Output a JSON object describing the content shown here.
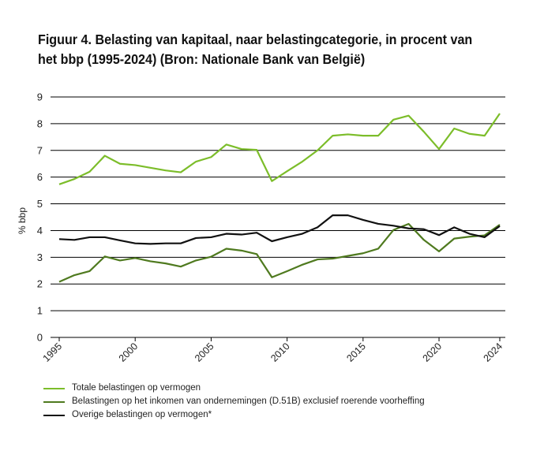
{
  "chart_data": {
    "type": "line",
    "title": "Figuur 4. Belasting van kapitaal, naar belastingcategorie, in procent van het bbp (1995-2024) (Bron: Nationale Bank van België)",
    "xlabel": "",
    "ylabel": "% bbp",
    "ylim": [
      0,
      9
    ],
    "yticks": [
      "0",
      "1",
      "2",
      "3",
      "4",
      "5",
      "6",
      "7",
      "8",
      "9"
    ],
    "xtick_labels": [
      "1995",
      "2000",
      "2005",
      "2010",
      "2015",
      "2020",
      "2024"
    ],
    "xticks": [
      1995,
      2000,
      2005,
      2010,
      2015,
      2020,
      2024
    ],
    "xlim": [
      1995,
      2024
    ],
    "grid": true,
    "legend_position": "bottom",
    "x": [
      1995,
      1996,
      1997,
      1998,
      1999,
      2000,
      2001,
      2002,
      2003,
      2004,
      2005,
      2006,
      2007,
      2008,
      2009,
      2010,
      2011,
      2012,
      2013,
      2014,
      2015,
      2016,
      2017,
      2018,
      2019,
      2020,
      2021,
      2022,
      2023,
      2024
    ],
    "series": [
      {
        "name": "Totale belastingen op vermogen",
        "color": "#7cbd2a",
        "values": [
          5.73,
          5.93,
          6.2,
          6.8,
          6.5,
          6.45,
          6.35,
          6.25,
          6.18,
          6.58,
          6.75,
          7.22,
          7.05,
          7.02,
          5.85,
          6.22,
          6.58,
          7.0,
          7.55,
          7.6,
          7.55,
          7.55,
          8.15,
          8.3,
          7.7,
          7.05,
          7.82,
          7.62,
          7.55,
          8.38
        ]
      },
      {
        "name": "Belastingen op het inkomen van ondernemingen (D.51B) exclusief roerende voorheffing",
        "color": "#4f7a1f",
        "values": [
          2.08,
          2.33,
          2.48,
          3.03,
          2.88,
          2.97,
          2.85,
          2.77,
          2.65,
          2.88,
          3.02,
          3.32,
          3.25,
          3.12,
          2.25,
          2.48,
          2.72,
          2.92,
          2.95,
          3.05,
          3.15,
          3.32,
          4.02,
          4.25,
          3.65,
          3.22,
          3.7,
          3.77,
          3.82,
          4.22
        ]
      },
      {
        "name": "Overige belastingen op vermogen*",
        "color": "#111111",
        "values": [
          3.68,
          3.65,
          3.75,
          3.75,
          3.63,
          3.52,
          3.5,
          3.52,
          3.52,
          3.72,
          3.75,
          3.88,
          3.85,
          3.92,
          3.6,
          3.75,
          3.88,
          4.12,
          4.57,
          4.57,
          4.4,
          4.25,
          4.18,
          4.08,
          4.05,
          3.83,
          4.12,
          3.88,
          3.75,
          4.17
        ]
      }
    ]
  }
}
